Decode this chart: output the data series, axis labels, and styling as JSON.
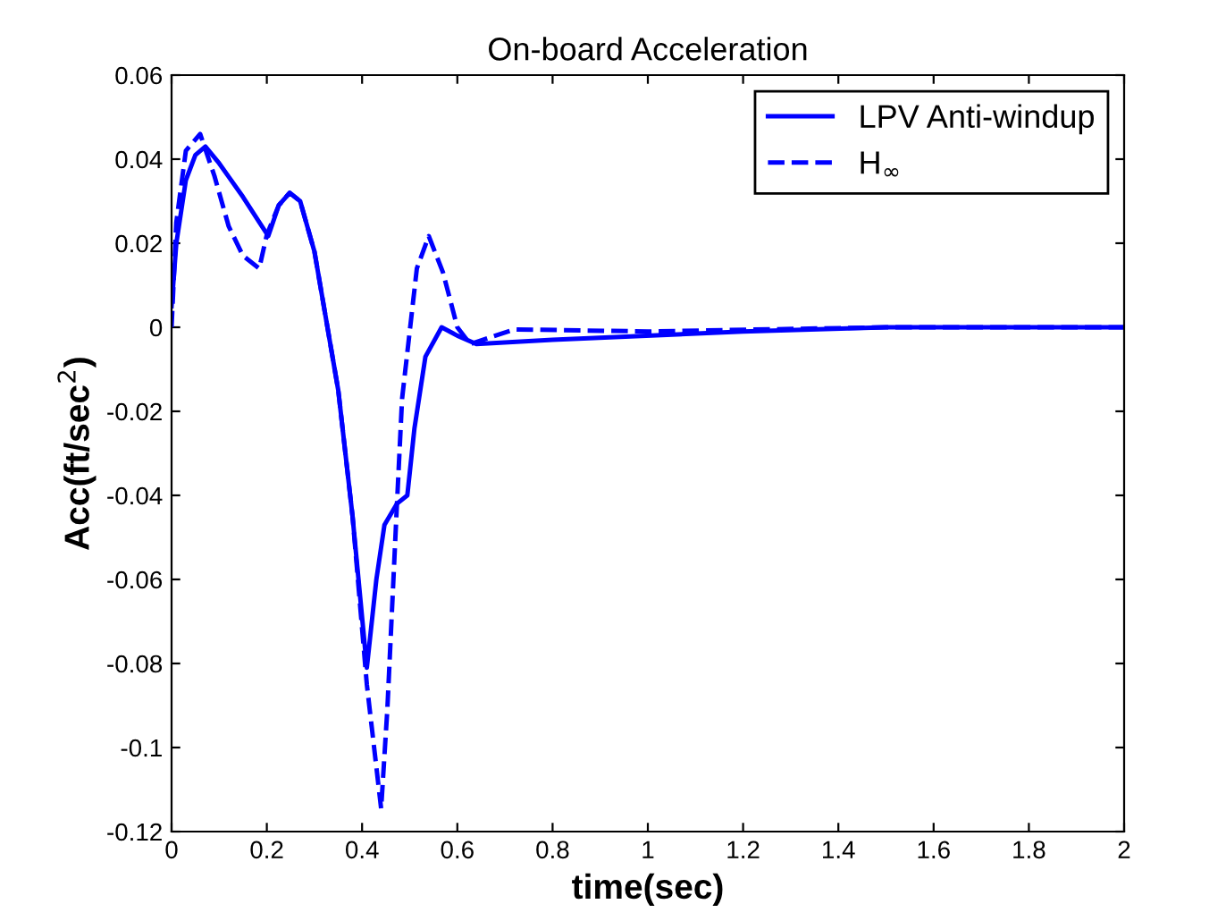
{
  "chart_data": {
    "type": "line",
    "title": "On-board Acceleration",
    "xlabel": "time(sec)",
    "ylabel": "Acc(ft/sec$^{2}$)",
    "xlim": [
      0,
      2
    ],
    "xticks": [
      0,
      0.2,
      0.4,
      0.6,
      0.8,
      1,
      1.2,
      1.4,
      1.6,
      1.8,
      2
    ],
    "ylim": [
      -0.12,
      0.06
    ],
    "yticks": [
      -0.12,
      -0.1,
      -0.08,
      -0.06,
      -0.04,
      -0.02,
      0,
      0.02,
      0.04,
      0.06
    ],
    "legend": "top right",
    "grid": false,
    "series": [
      {
        "name": "LPV Anti-windup",
        "color": "#0000ff",
        "line_style": "solid",
        "x": [
          0,
          0.01,
          0.03,
          0.05,
          0.071,
          0.1,
          0.15,
          0.203,
          0.225,
          0.248,
          0.27,
          0.3,
          0.35,
          0.38,
          0.41,
          0.43,
          0.447,
          0.473,
          0.495,
          0.51,
          0.533,
          0.567,
          0.6,
          0.64,
          0.8,
          1.2,
          1.5,
          2
        ],
        "values": [
          0.005,
          0.02,
          0.035,
          0.041,
          0.043,
          0.039,
          0.031,
          0.0217,
          0.029,
          0.032,
          0.03,
          0.018,
          -0.015,
          -0.045,
          -0.081,
          -0.06,
          -0.047,
          -0.042,
          -0.04,
          -0.024,
          -0.007,
          0,
          -0.002,
          -0.004,
          -0.003,
          -0.001,
          0,
          0
        ]
      },
      {
        "name": "H$_{∞}$",
        "color": "#0000ff",
        "line_style": "dashed",
        "x": [
          0,
          0.01,
          0.03,
          0.06,
          0.09,
          0.12,
          0.15,
          0.184,
          0.2,
          0.225,
          0.248,
          0.27,
          0.3,
          0.35,
          0.38,
          0.41,
          0.44,
          0.453,
          0.473,
          0.484,
          0.515,
          0.54,
          0.57,
          0.6,
          0.627,
          0.72,
          1.0,
          1.5,
          2
        ],
        "values": [
          0,
          0.025,
          0.042,
          0.046,
          0.036,
          0.024,
          0.017,
          0.014,
          0.022,
          0.029,
          0.032,
          0.03,
          0.018,
          -0.015,
          -0.045,
          -0.085,
          -0.1145,
          -0.091,
          -0.0426,
          -0.017,
          0.014,
          0.0217,
          0.013,
          0,
          -0.004,
          -0.0005,
          -0.001,
          0,
          0
        ]
      }
    ]
  }
}
